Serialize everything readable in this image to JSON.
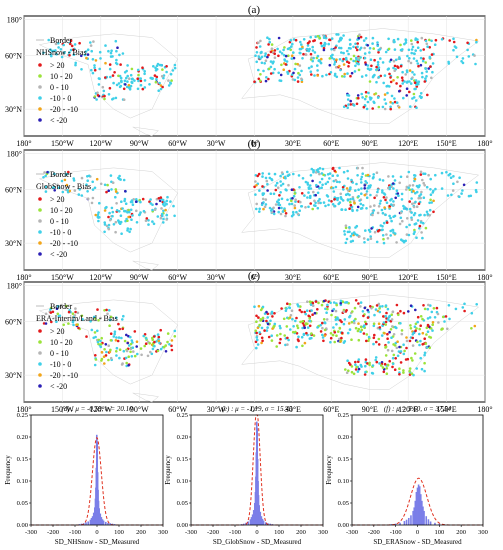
{
  "maps": [
    {
      "panel_label": "(a)",
      "legend": {
        "border_label": "Border",
        "title": "NHSnow - Bias",
        "classes": [
          {
            "label": "> 20",
            "color": "#e31a1c"
          },
          {
            "label": "10 - 20",
            "color": "#9be33a"
          },
          {
            "label": "0 - 10",
            "color": "#b5b5b5"
          },
          {
            "label": "-10 - 0",
            "color": "#3fd0e8"
          },
          {
            "label": "-20 - -10",
            "color": "#f2a51a"
          },
          {
            "label": "< -20",
            "color": "#2b1fb5"
          }
        ]
      },
      "density": [
        0.16,
        0.06,
        0.06,
        0.64,
        0.04,
        0.04
      ]
    },
    {
      "panel_label": "(b)",
      "legend": {
        "border_label": "Border",
        "title": "GlobSnow - Bias",
        "classes": [
          {
            "label": "> 20",
            "color": "#e31a1c"
          },
          {
            "label": "10 - 20",
            "color": "#9be33a"
          },
          {
            "label": "0 - 10",
            "color": "#b5b5b5"
          },
          {
            "label": "-10 - 0",
            "color": "#3fd0e8"
          },
          {
            "label": "-20 - -10",
            "color": "#f2a51a"
          },
          {
            "label": "< -20",
            "color": "#2b1fb5"
          }
        ]
      },
      "density": [
        0.06,
        0.03,
        0.15,
        0.7,
        0.03,
        0.03
      ]
    },
    {
      "panel_label": "(c)",
      "legend": {
        "border_label": "Border",
        "title": "ERA-Interim/Land - Bias",
        "classes": [
          {
            "label": "> 20",
            "color": "#e31a1c"
          },
          {
            "label": "10 - 20",
            "color": "#9be33a"
          },
          {
            "label": "0 - 10",
            "color": "#b5b5b5"
          },
          {
            "label": "-10 - 0",
            "color": "#3fd0e8"
          },
          {
            "label": "-20 - -10",
            "color": "#f2a51a"
          },
          {
            "label": "< -20",
            "color": "#2b1fb5"
          }
        ]
      },
      "density": [
        0.2,
        0.3,
        0.1,
        0.32,
        0.04,
        0.04
      ]
    }
  ],
  "map_axes": {
    "lon_labels": [
      "180°",
      "150°W",
      "120°W",
      "90°W",
      "60°W",
      "30°W",
      "0°",
      "30°E",
      "60°E",
      "90°E",
      "120°E",
      "150°E",
      "180°"
    ],
    "lon_ticks": [
      -180,
      -150,
      -120,
      -90,
      -60,
      -30,
      0,
      30,
      60,
      90,
      120,
      150,
      180
    ],
    "lat_labels": [
      "180°",
      "60°N",
      "30°N"
    ],
    "lat_ticks": [
      80,
      60,
      30
    ],
    "lat_range": [
      15,
      82
    ]
  },
  "chart_data": [
    {
      "type": "bar",
      "title": "(d) : μ = -0.59, σ = 20.10",
      "xlabel": "SD_NHSnow - SD_Measured",
      "ylabel": "Frequency",
      "xlim": [
        -300,
        300
      ],
      "ylim": [
        0,
        0.25
      ],
      "xticks": [
        -300,
        -200,
        -100,
        0,
        100,
        200,
        300
      ],
      "yticks": [
        0,
        0.05,
        0.1,
        0.15,
        0.2,
        0.25
      ],
      "bar_color": "#7b7fe8",
      "fit_color": "#e0301e",
      "mu": -0.59,
      "sigma": 20.1,
      "histogram": {
        "bin_centers": [
          -80,
          -70,
          -60,
          -50,
          -40,
          -30,
          -25,
          -20,
          -15,
          -10,
          -7,
          -5,
          -3,
          -1,
          1,
          3,
          5,
          7,
          10,
          15,
          20,
          25,
          30,
          40,
          50,
          60,
          70,
          80
        ],
        "frequencies": [
          0.002,
          0.003,
          0.004,
          0.006,
          0.008,
          0.012,
          0.016,
          0.02,
          0.028,
          0.04,
          0.06,
          0.085,
          0.13,
          0.205,
          0.19,
          0.12,
          0.08,
          0.055,
          0.038,
          0.026,
          0.018,
          0.013,
          0.01,
          0.007,
          0.005,
          0.004,
          0.003,
          0.002
        ]
      }
    },
    {
      "type": "bar",
      "title": "(e) : μ = -1.19, σ = 15.43",
      "xlabel": "SD_GlobSnow - SD_Measured",
      "ylabel": "Frequency",
      "xlim": [
        -300,
        300
      ],
      "ylim": [
        0,
        0.25
      ],
      "xticks": [
        -300,
        -200,
        -100,
        0,
        100,
        200,
        300
      ],
      "yticks": [
        0,
        0.05,
        0.1,
        0.15,
        0.2,
        0.25
      ],
      "bar_color": "#7b7fe8",
      "fit_color": "#e0301e",
      "mu": -1.19,
      "sigma": 15.43,
      "histogram": {
        "bin_centers": [
          -70,
          -60,
          -50,
          -40,
          -30,
          -25,
          -20,
          -15,
          -10,
          -7,
          -5,
          -3,
          -1,
          1,
          3,
          5,
          7,
          10,
          15,
          20,
          25,
          30,
          40,
          50,
          60,
          70
        ],
        "frequencies": [
          0.002,
          0.003,
          0.005,
          0.008,
          0.013,
          0.018,
          0.024,
          0.034,
          0.05,
          0.075,
          0.11,
          0.165,
          0.235,
          0.22,
          0.15,
          0.1,
          0.068,
          0.045,
          0.03,
          0.02,
          0.014,
          0.01,
          0.006,
          0.004,
          0.003,
          0.002
        ]
      }
    },
    {
      "type": "bar",
      "title": "(f) : μ = 5.60, σ = 37.54",
      "xlabel": "SD_ERASnow - SD_Measured",
      "ylabel": "Frequency",
      "xlim": [
        -300,
        300
      ],
      "ylim": [
        0,
        0.25
      ],
      "xticks": [
        -300,
        -200,
        -100,
        0,
        100,
        200,
        300
      ],
      "yticks": [
        0,
        0.05,
        0.1,
        0.15,
        0.2,
        0.25
      ],
      "bar_color": "#7b7fe8",
      "fit_color": "#e0301e",
      "mu": 5.6,
      "sigma": 37.54,
      "histogram": {
        "bin_centers": [
          -120,
          -100,
          -80,
          -60,
          -50,
          -40,
          -30,
          -20,
          -15,
          -10,
          -5,
          0,
          5,
          10,
          15,
          20,
          25,
          30,
          40,
          50,
          60,
          80,
          100,
          120
        ],
        "frequencies": [
          0.002,
          0.003,
          0.005,
          0.009,
          0.012,
          0.016,
          0.022,
          0.032,
          0.04,
          0.055,
          0.075,
          0.085,
          0.092,
          0.088,
          0.07,
          0.055,
          0.042,
          0.032,
          0.02,
          0.013,
          0.008,
          0.005,
          0.003,
          0.002
        ]
      }
    }
  ]
}
